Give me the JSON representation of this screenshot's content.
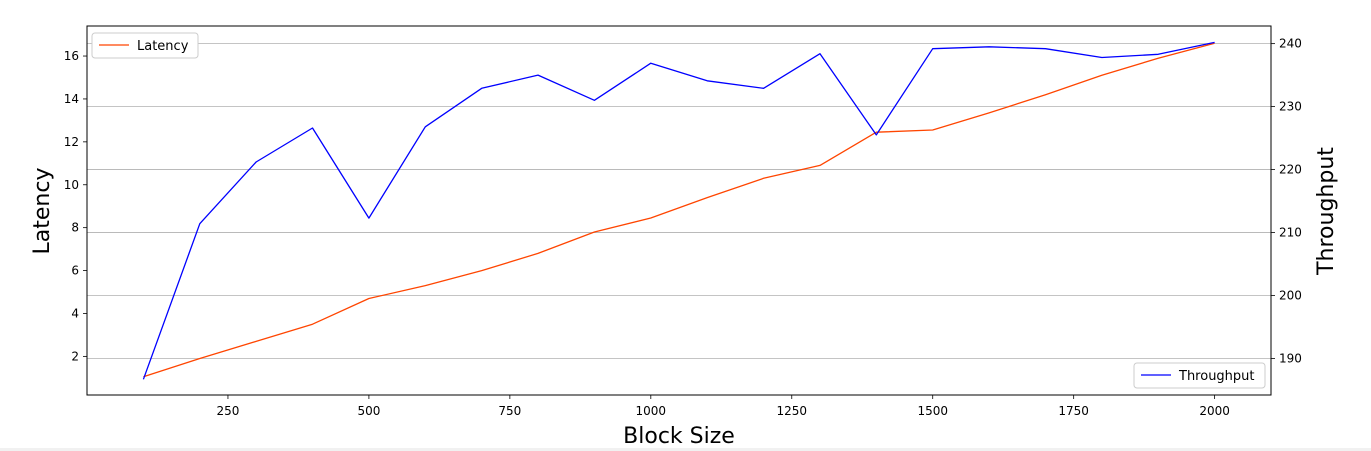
{
  "chart_data": {
    "type": "line",
    "xlabel": "Block Size",
    "ylabel_left": "Latency",
    "ylabel_right": "Throughput",
    "x": [
      100,
      200,
      300,
      400,
      500,
      600,
      700,
      800,
      900,
      1000,
      1100,
      1200,
      1300,
      1400,
      1500,
      1600,
      1700,
      1800,
      1900,
      2000
    ],
    "xlim": [
      0,
      2100
    ],
    "xticks": [
      250,
      500,
      750,
      1000,
      1250,
      1500,
      1750,
      2000
    ],
    "ylim_left": [
      0.2,
      17.4
    ],
    "yticks_left": [
      2,
      4,
      6,
      8,
      10,
      12,
      14,
      16
    ],
    "ylim_right": [
      184.2,
      242.8
    ],
    "yticks_right": [
      190,
      200,
      210,
      220,
      230,
      240
    ],
    "grid": "horizontal lines on right axis ticks",
    "series": [
      {
        "name": "Latency",
        "axis": "left",
        "color": "#ff4500",
        "legend_position": "upper-left",
        "values": [
          1.05,
          1.9,
          2.7,
          3.5,
          4.7,
          5.3,
          6.0,
          6.8,
          7.8,
          8.45,
          9.4,
          10.3,
          10.9,
          12.45,
          12.55,
          13.35,
          14.2,
          15.1,
          15.9,
          16.6
        ]
      },
      {
        "name": "Throughput",
        "axis": "right",
        "color": "#0000ff",
        "legend_position": "lower-right",
        "values": [
          186.7,
          211.4,
          221.2,
          226.6,
          212.3,
          226.8,
          232.9,
          235.0,
          231.0,
          236.9,
          234.1,
          232.9,
          238.4,
          225.5,
          239.2,
          239.5,
          239.2,
          237.8,
          238.3,
          240.2
        ]
      }
    ]
  }
}
